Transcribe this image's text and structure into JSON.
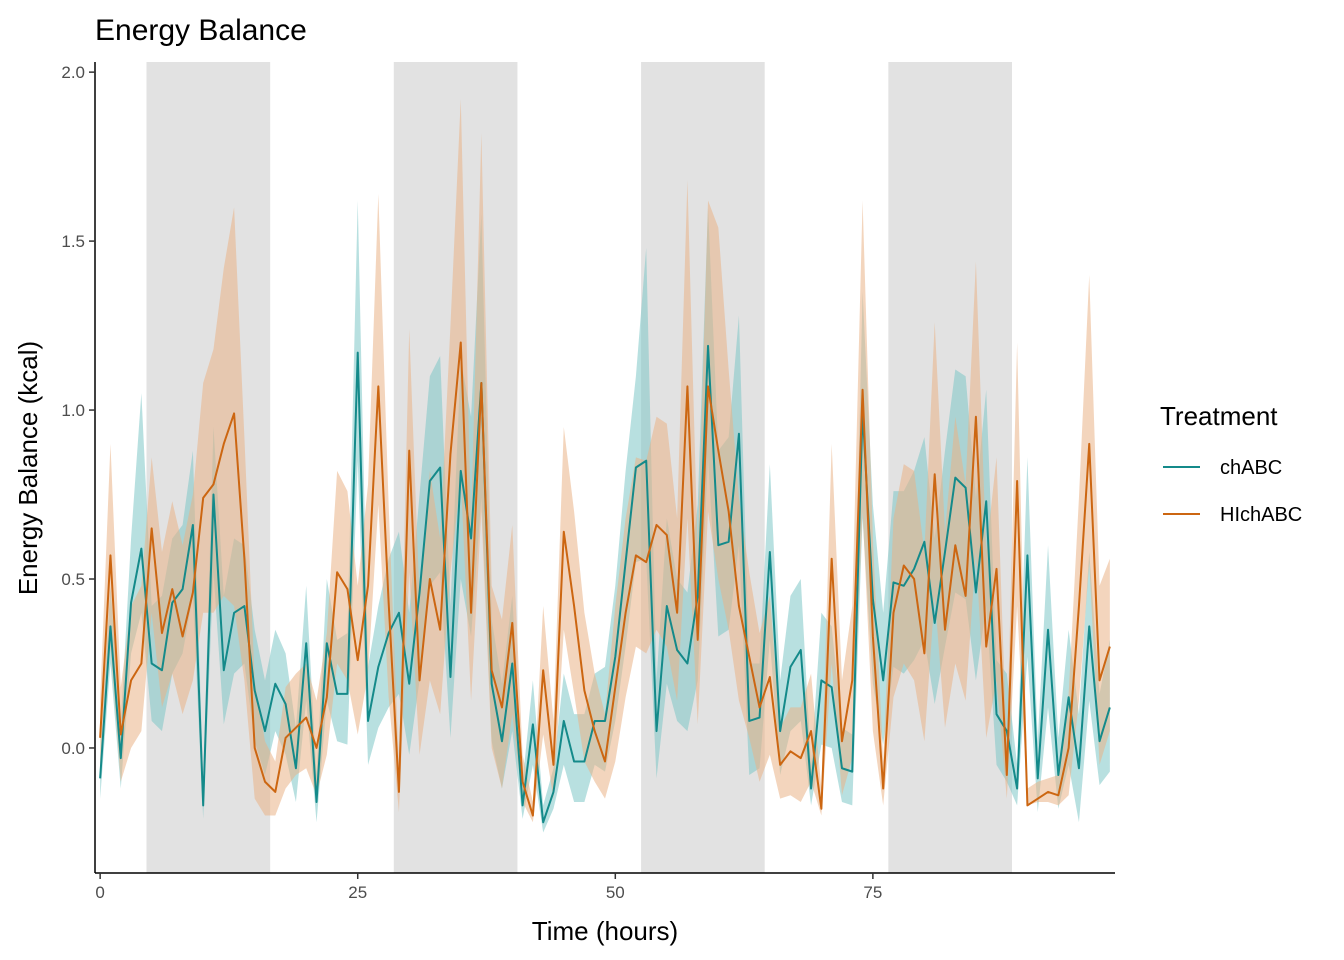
{
  "chart_data": {
    "type": "line",
    "title": "Energy Balance",
    "xlabel": "Time (hours)",
    "ylabel": "Energy Balance (kcal)",
    "xlim": [
      -0.5,
      98.5
    ],
    "ylim": [
      -0.37,
      2.03
    ],
    "xticks": [
      0,
      25,
      50,
      75
    ],
    "yticks": [
      0.0,
      0.5,
      1.0,
      1.5,
      2.0
    ],
    "ytick_labels": [
      "0.0",
      "0.5",
      "1.0",
      "1.5",
      "2.0"
    ],
    "dark_periods": [
      [
        4.5,
        16.5
      ],
      [
        28.5,
        40.5
      ],
      [
        52.5,
        64.5
      ],
      [
        76.5,
        88.5
      ]
    ],
    "dark_period_color": "#e2e2e2",
    "legend": {
      "title": "Treatment",
      "position": "right"
    },
    "series": [
      {
        "name": "chABC",
        "color": "#148a8a",
        "ribbon_color": "#7ec7c7",
        "x": [
          0,
          1,
          2,
          3,
          4,
          5,
          6,
          7,
          8,
          9,
          10,
          11,
          12,
          13,
          14,
          15,
          16,
          17,
          18,
          19,
          20,
          21,
          22,
          23,
          24,
          25,
          26,
          27,
          28,
          29,
          30,
          31,
          32,
          33,
          34,
          35,
          36,
          37,
          38,
          39,
          40,
          41,
          42,
          43,
          44,
          45,
          46,
          47,
          48,
          49,
          50,
          51,
          52,
          53,
          54,
          55,
          56,
          57,
          58,
          59,
          60,
          61,
          62,
          63,
          64,
          65,
          66,
          67,
          68,
          69,
          70,
          71,
          72,
          73,
          74,
          75,
          76,
          77,
          78,
          79,
          80,
          81,
          82,
          83,
          84,
          85,
          86,
          87,
          88,
          89,
          90,
          91,
          92,
          93,
          94,
          95,
          96,
          97,
          98
        ],
        "values": [
          -0.09,
          0.36,
          -0.03,
          0.43,
          0.59,
          0.25,
          0.23,
          0.43,
          0.47,
          0.66,
          -0.17,
          0.75,
          0.23,
          0.4,
          0.42,
          0.17,
          0.05,
          0.19,
          0.13,
          -0.06,
          0.31,
          -0.16,
          0.31,
          0.16,
          0.16,
          1.17,
          0.08,
          0.24,
          0.34,
          0.4,
          0.19,
          0.46,
          0.79,
          0.83,
          0.21,
          0.82,
          0.62,
          1.08,
          0.19,
          0.02,
          0.25,
          -0.17,
          0.07,
          -0.22,
          -0.13,
          0.08,
          -0.04,
          -0.04,
          0.08,
          0.08,
          0.27,
          0.55,
          0.83,
          0.85,
          0.05,
          0.42,
          0.29,
          0.25,
          0.45,
          1.19,
          0.6,
          0.61,
          0.93,
          0.08,
          0.09,
          0.58,
          0.05,
          0.24,
          0.29,
          -0.12,
          0.2,
          0.18,
          -0.06,
          -0.07,
          1.0,
          0.44,
          0.2,
          0.49,
          0.48,
          0.53,
          0.61,
          0.37,
          0.58,
          0.8,
          0.77,
          0.46,
          0.73,
          0.1,
          0.05,
          -0.12,
          0.57,
          -0.09,
          0.35,
          -0.08,
          0.15,
          -0.06,
          0.36,
          0.02,
          0.12
        ],
        "lower": [
          -0.15,
          0.25,
          -0.12,
          0.28,
          0.4,
          0.08,
          0.05,
          0.22,
          0.28,
          0.45,
          -0.21,
          0.52,
          0.07,
          0.22,
          0.25,
          0.02,
          -0.08,
          0.05,
          -0.02,
          -0.16,
          0.14,
          -0.22,
          0.14,
          0.02,
          0.01,
          0.85,
          -0.05,
          0.06,
          0.12,
          0.16,
          -0.02,
          0.2,
          0.48,
          0.52,
          0.03,
          0.5,
          0.33,
          0.74,
          0.02,
          -0.12,
          0.05,
          -0.21,
          -0.05,
          -0.25,
          -0.18,
          -0.05,
          -0.16,
          -0.16,
          -0.05,
          -0.07,
          0.08,
          0.3,
          0.55,
          0.56,
          -0.09,
          0.19,
          0.08,
          0.05,
          0.2,
          0.86,
          0.33,
          0.35,
          0.6,
          -0.08,
          -0.06,
          0.32,
          -0.08,
          0.05,
          0.08,
          -0.17,
          0.01,
          0.0,
          -0.16,
          -0.17,
          0.68,
          0.19,
          0.01,
          0.24,
          0.22,
          0.26,
          0.32,
          0.13,
          0.3,
          0.46,
          0.44,
          0.2,
          0.42,
          -0.05,
          -0.1,
          -0.17,
          0.27,
          -0.19,
          0.12,
          -0.18,
          -0.05,
          -0.22,
          0.14,
          -0.11,
          -0.07
        ],
        "upper": [
          -0.03,
          0.48,
          0.07,
          0.62,
          1.05,
          0.42,
          0.45,
          0.62,
          0.66,
          0.88,
          -0.1,
          0.95,
          0.45,
          0.62,
          0.6,
          0.35,
          0.2,
          0.35,
          0.28,
          0.06,
          0.48,
          -0.08,
          0.5,
          0.32,
          0.34,
          1.62,
          0.24,
          0.42,
          0.56,
          0.64,
          0.4,
          0.75,
          1.1,
          1.16,
          0.42,
          1.15,
          0.98,
          1.58,
          0.38,
          0.19,
          0.45,
          -0.1,
          0.2,
          -0.17,
          -0.06,
          0.22,
          0.1,
          0.1,
          0.22,
          0.24,
          0.48,
          0.82,
          1.1,
          1.48,
          0.2,
          0.68,
          0.5,
          0.46,
          0.72,
          1.6,
          0.88,
          0.92,
          1.28,
          0.25,
          0.25,
          0.84,
          0.2,
          0.45,
          0.5,
          -0.05,
          0.4,
          0.36,
          0.06,
          0.04,
          1.35,
          0.72,
          0.4,
          0.76,
          0.76,
          0.82,
          0.92,
          0.62,
          0.88,
          1.12,
          1.1,
          0.74,
          1.06,
          0.26,
          0.22,
          -0.05,
          0.86,
          0.02,
          0.6,
          0.03,
          0.35,
          0.1,
          0.58,
          0.16,
          0.32
        ]
      },
      {
        "name": "HIchABC",
        "color": "#cc6611",
        "ribbon_color": "#e9b286",
        "x": [
          0,
          1,
          2,
          3,
          4,
          5,
          6,
          7,
          8,
          9,
          10,
          11,
          12,
          13,
          14,
          15,
          16,
          17,
          18,
          19,
          20,
          21,
          22,
          23,
          24,
          25,
          26,
          27,
          28,
          29,
          30,
          31,
          32,
          33,
          34,
          35,
          36,
          37,
          38,
          39,
          40,
          41,
          42,
          43,
          44,
          45,
          46,
          47,
          48,
          49,
          50,
          51,
          52,
          53,
          54,
          55,
          56,
          57,
          58,
          59,
          60,
          61,
          62,
          63,
          64,
          65,
          66,
          67,
          68,
          69,
          70,
          71,
          72,
          73,
          74,
          75,
          76,
          77,
          78,
          79,
          80,
          81,
          82,
          83,
          84,
          85,
          86,
          87,
          88,
          89,
          90,
          91,
          92,
          93,
          94,
          95,
          96,
          97,
          98
        ],
        "values": [
          0.03,
          0.57,
          0.04,
          0.2,
          0.25,
          0.65,
          0.34,
          0.47,
          0.33,
          0.46,
          0.74,
          0.78,
          0.9,
          0.99,
          0.56,
          0.0,
          -0.1,
          -0.13,
          0.03,
          0.06,
          0.09,
          0.0,
          0.15,
          0.52,
          0.47,
          0.26,
          0.48,
          1.07,
          0.43,
          -0.13,
          0.88,
          0.2,
          0.5,
          0.35,
          0.87,
          1.2,
          0.4,
          1.08,
          0.23,
          0.12,
          0.37,
          -0.1,
          -0.2,
          0.23,
          -0.05,
          0.64,
          0.42,
          0.17,
          0.05,
          -0.04,
          0.18,
          0.4,
          0.57,
          0.55,
          0.66,
          0.63,
          0.4,
          1.07,
          0.32,
          1.07,
          0.88,
          0.7,
          0.42,
          0.27,
          0.12,
          0.21,
          -0.05,
          -0.01,
          -0.03,
          0.05,
          -0.18,
          0.56,
          0.02,
          0.2,
          1.06,
          0.33,
          -0.12,
          0.4,
          0.54,
          0.5,
          0.28,
          0.81,
          0.35,
          0.6,
          0.45,
          0.98,
          0.3,
          0.53,
          -0.08,
          0.79,
          -0.17,
          -0.15,
          -0.13,
          -0.14,
          0.0,
          0.42,
          0.9,
          0.2,
          0.3
        ],
        "lower": [
          -0.08,
          0.3,
          -0.1,
          0.0,
          0.05,
          0.4,
          0.12,
          0.22,
          0.1,
          0.2,
          0.4,
          0.4,
          0.45,
          0.42,
          0.2,
          -0.15,
          -0.2,
          -0.2,
          -0.12,
          -0.08,
          -0.06,
          -0.14,
          -0.02,
          0.25,
          0.2,
          0.04,
          0.22,
          0.72,
          0.15,
          -0.19,
          0.52,
          -0.02,
          0.2,
          0.1,
          0.52,
          0.8,
          0.14,
          0.7,
          0.0,
          -0.12,
          0.1,
          -0.16,
          -0.22,
          0.04,
          -0.15,
          0.35,
          0.16,
          -0.04,
          -0.1,
          -0.15,
          -0.04,
          0.15,
          0.3,
          0.28,
          0.35,
          0.3,
          0.14,
          0.68,
          0.07,
          0.7,
          0.5,
          0.35,
          0.14,
          0.03,
          -0.1,
          -0.02,
          -0.15,
          -0.14,
          -0.16,
          -0.1,
          -0.2,
          0.25,
          -0.14,
          -0.03,
          0.7,
          0.05,
          -0.17,
          0.15,
          0.25,
          0.2,
          0.02,
          0.45,
          0.06,
          0.25,
          0.14,
          0.58,
          0.03,
          0.2,
          -0.15,
          0.42,
          -0.17,
          -0.16,
          -0.16,
          -0.17,
          -0.14,
          0.14,
          0.55,
          -0.05,
          0.05
        ],
        "upper": [
          0.14,
          0.9,
          0.18,
          0.42,
          0.48,
          0.86,
          0.58,
          0.73,
          0.6,
          0.75,
          1.08,
          1.18,
          1.42,
          1.6,
          0.92,
          0.2,
          0.02,
          -0.04,
          0.18,
          0.22,
          0.25,
          0.14,
          0.34,
          0.82,
          0.76,
          0.48,
          0.78,
          1.64,
          0.72,
          -0.05,
          1.24,
          0.44,
          0.82,
          0.62,
          1.25,
          1.92,
          0.66,
          1.82,
          0.48,
          0.38,
          0.66,
          -0.02,
          -0.16,
          0.42,
          0.08,
          0.95,
          0.7,
          0.4,
          0.22,
          0.1,
          0.42,
          0.68,
          0.86,
          0.85,
          0.98,
          0.96,
          0.68,
          1.68,
          0.58,
          1.62,
          1.54,
          1.12,
          0.74,
          0.52,
          0.34,
          0.45,
          0.06,
          0.12,
          0.12,
          0.22,
          -0.12,
          0.9,
          0.2,
          0.42,
          1.62,
          0.62,
          -0.04,
          0.68,
          0.84,
          0.82,
          0.58,
          1.26,
          0.64,
          0.98,
          0.78,
          1.44,
          0.58,
          0.86,
          0.0,
          1.2,
          -0.12,
          -0.1,
          -0.09,
          -0.08,
          0.16,
          0.74,
          1.4,
          0.48,
          0.56
        ]
      }
    ]
  }
}
